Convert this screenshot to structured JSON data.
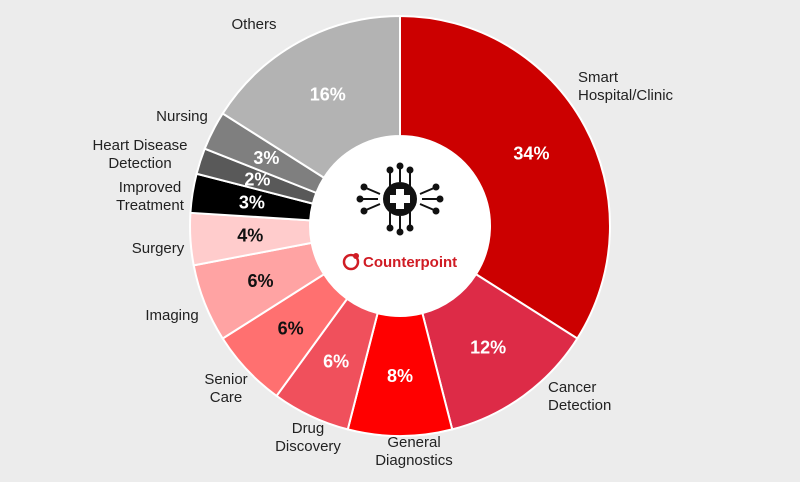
{
  "chart_data": {
    "type": "pie",
    "style": "donut",
    "slices": [
      {
        "label": "Smart Hospital/Clinic",
        "value": 34,
        "value_label": "34%",
        "color": "#cc0000",
        "text_color": "#ffffff"
      },
      {
        "label": "Cancer Detection",
        "value": 12,
        "value_label": "12%",
        "color": "#dd2b47",
        "text_color": "#ffffff"
      },
      {
        "label": "General Diagnostics",
        "value": 8,
        "value_label": "8%",
        "color": "#ff0000",
        "text_color": "#ffffff"
      },
      {
        "label": "Drug Discovery",
        "value": 6,
        "value_label": "6%",
        "color": "#f0505c",
        "text_color": "#ffffff"
      },
      {
        "label": "Senior Care",
        "value": 6,
        "value_label": "6%",
        "color": "#ff7070",
        "text_color": "#111111"
      },
      {
        "label": "Imaging",
        "value": 6,
        "value_label": "6%",
        "color": "#ffa3a3",
        "text_color": "#111111"
      },
      {
        "label": "Surgery",
        "value": 4,
        "value_label": "4%",
        "color": "#ffcccc",
        "text_color": "#111111"
      },
      {
        "label": "Improved Treatment",
        "value": 3,
        "value_label": "3%",
        "color": "#000000",
        "text_color": "#ffffff"
      },
      {
        "label": "Heart Disease Detection",
        "value": 2,
        "value_label": "2%",
        "color": "#595959",
        "text_color": "#ffffff"
      },
      {
        "label": "Nursing",
        "value": 3,
        "value_label": "3%",
        "color": "#7f7f7f",
        "text_color": "#ffffff"
      },
      {
        "label": "Others",
        "value": 16,
        "value_label": "16%",
        "color": "#b3b3b3",
        "text_color": "#ffffff"
      }
    ]
  },
  "center": {
    "icon": "medical-chip-icon",
    "logo_text": "Counterpoint",
    "logo_icon": "counterpoint-logo-icon",
    "brand_color": "#d01c24"
  }
}
